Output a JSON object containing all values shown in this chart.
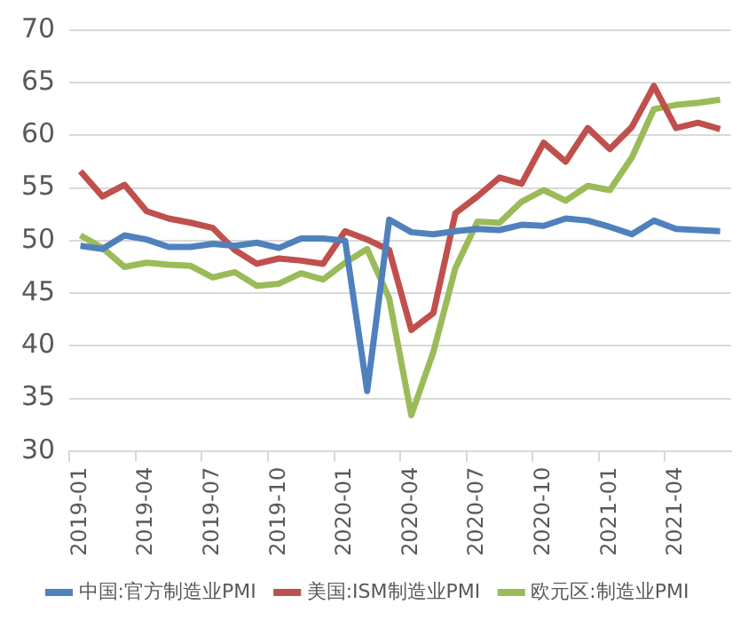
{
  "chart_data": {
    "type": "line",
    "categories": [
      "2019-01",
      null,
      null,
      "2019-04",
      null,
      null,
      "2019-07",
      null,
      null,
      "2019-10",
      null,
      null,
      "2020-01",
      null,
      null,
      "2020-04",
      null,
      null,
      "2020-07",
      null,
      null,
      "2020-10",
      null,
      null,
      "2021-01",
      null,
      null,
      "2021-04",
      null,
      null
    ],
    "series": [
      {
        "name": "中国:官方制造业PMI",
        "color": "#4f81bd",
        "values": [
          49.5,
          49.2,
          50.5,
          50.1,
          49.4,
          49.4,
          49.7,
          49.5,
          49.8,
          49.3,
          50.2,
          50.2,
          50.0,
          35.7,
          52.0,
          50.8,
          50.6,
          50.9,
          51.1,
          51.0,
          51.5,
          51.4,
          52.1,
          51.9,
          51.3,
          50.6,
          51.9,
          51.1,
          51.0,
          50.9
        ]
      },
      {
        "name": "美国:ISM制造业PMI",
        "color": "#c0504d",
        "values": [
          56.6,
          54.2,
          55.3,
          52.8,
          52.1,
          51.7,
          51.2,
          49.1,
          47.8,
          48.3,
          48.1,
          47.8,
          50.9,
          50.1,
          49.1,
          41.5,
          43.1,
          52.6,
          54.2,
          56.0,
          55.4,
          59.3,
          57.5,
          60.7,
          58.7,
          60.8,
          64.7,
          60.7,
          61.2,
          60.6
        ]
      },
      {
        "name": "欧元区:制造业PMI",
        "color": "#9bbb59",
        "values": [
          50.5,
          49.3,
          47.5,
          47.9,
          47.7,
          47.6,
          46.5,
          47.0,
          45.7,
          45.9,
          46.9,
          46.3,
          47.9,
          49.2,
          44.5,
          33.4,
          39.4,
          47.4,
          51.8,
          51.7,
          53.7,
          54.8,
          53.8,
          55.2,
          54.8,
          57.9,
          62.5,
          62.9,
          63.1,
          63.4
        ]
      }
    ],
    "ylim": [
      30,
      70
    ],
    "yticks": [
      30,
      35,
      40,
      45,
      50,
      55,
      60,
      65,
      70
    ],
    "grid": "y",
    "legend": "bottom",
    "marker": "none",
    "line_style": "solid"
  }
}
